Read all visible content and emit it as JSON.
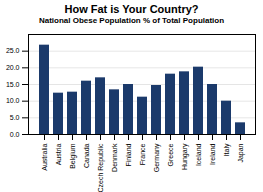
{
  "chart_data": {
    "type": "bar",
    "title": "How Fat is Your Country?",
    "subtitle": "National Obese Population % of Total Population",
    "categories": [
      "Australia",
      "Austria",
      "Belgium",
      "Canada",
      "Czech Republic",
      "Denmark",
      "Finland",
      "France",
      "Germany",
      "Greece",
      "Hungary",
      "Iceland",
      "Ireland",
      "Italy",
      "Japan"
    ],
    "values": [
      26.8,
      12.4,
      12.7,
      16.0,
      17.0,
      13.4,
      15.0,
      11.2,
      14.7,
      18.1,
      18.8,
      20.2,
      15.0,
      10.0,
      3.5
    ],
    "color": "#1b3a6b",
    "ylim": [
      0,
      30
    ],
    "yticks": [
      {
        "value": 0,
        "label": "0.0"
      },
      {
        "value": 5,
        "label": "5.0"
      },
      {
        "value": 10,
        "label": "10.0"
      },
      {
        "value": 15,
        "label": "15.0"
      },
      {
        "value": 20,
        "label": "20.0"
      },
      {
        "value": 25,
        "label": "25.0"
      }
    ],
    "grid": true
  }
}
